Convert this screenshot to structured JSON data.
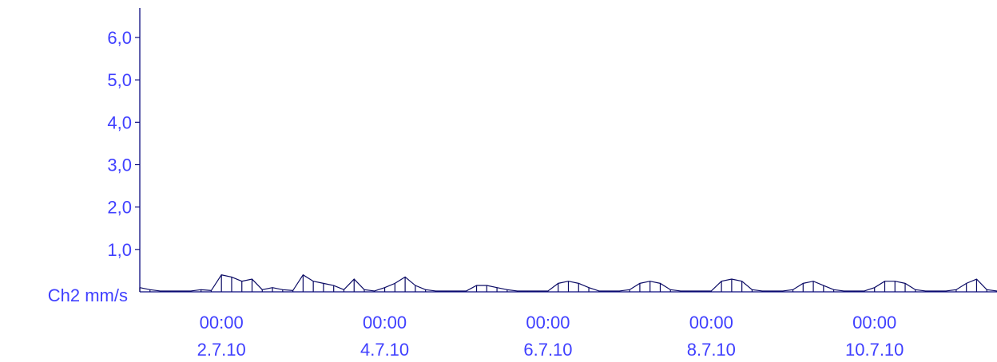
{
  "chart_data": {
    "type": "line",
    "ylabel": "Ch2 mm/s",
    "ylim": [
      0,
      6
    ],
    "y_ticks": [
      {
        "value": 6,
        "label": "6,0"
      },
      {
        "value": 5,
        "label": "5,0"
      },
      {
        "value": 4,
        "label": "4,0"
      },
      {
        "value": 3,
        "label": "3,0"
      },
      {
        "value": 2,
        "label": "2,0"
      },
      {
        "value": 1,
        "label": "1,0"
      }
    ],
    "x_ticks": [
      {
        "time": "00:00",
        "date": "2.7.10"
      },
      {
        "time": "00:00",
        "date": "4.7.10"
      },
      {
        "time": "00:00",
        "date": "6.7.10"
      },
      {
        "time": "00:00",
        "date": "8.7.10"
      },
      {
        "time": "00:00",
        "date": "10.7.10"
      }
    ],
    "xlim": [
      "2010-07-01 00:00",
      "2010-07-11 12:00"
    ],
    "grid": false,
    "series": [
      {
        "color": "#0a0a64",
        "x": [
          "2010-07-01 00:00",
          "2010-07-01 03:00",
          "2010-07-01 06:00",
          "2010-07-01 09:00",
          "2010-07-01 12:00",
          "2010-07-01 15:00",
          "2010-07-01 18:00",
          "2010-07-01 21:00",
          "2010-07-02 00:00",
          "2010-07-02 03:00",
          "2010-07-02 06:00",
          "2010-07-02 09:00",
          "2010-07-02 12:00",
          "2010-07-02 15:00",
          "2010-07-02 18:00",
          "2010-07-02 21:00",
          "2010-07-03 00:00",
          "2010-07-03 03:00",
          "2010-07-03 06:00",
          "2010-07-03 09:00",
          "2010-07-03 12:00",
          "2010-07-03 15:00",
          "2010-07-03 18:00",
          "2010-07-03 21:00",
          "2010-07-04 00:00",
          "2010-07-04 03:00",
          "2010-07-04 06:00",
          "2010-07-04 09:00",
          "2010-07-04 12:00",
          "2010-07-04 15:00",
          "2010-07-04 18:00",
          "2010-07-04 21:00",
          "2010-07-05 00:00",
          "2010-07-05 03:00",
          "2010-07-05 06:00",
          "2010-07-05 09:00",
          "2010-07-05 12:00",
          "2010-07-05 15:00",
          "2010-07-05 18:00",
          "2010-07-05 21:00",
          "2010-07-06 00:00",
          "2010-07-06 03:00",
          "2010-07-06 06:00",
          "2010-07-06 09:00",
          "2010-07-06 12:00",
          "2010-07-06 15:00",
          "2010-07-06 18:00",
          "2010-07-06 21:00",
          "2010-07-07 00:00",
          "2010-07-07 03:00",
          "2010-07-07 06:00",
          "2010-07-07 09:00",
          "2010-07-07 12:00",
          "2010-07-07 15:00",
          "2010-07-07 18:00",
          "2010-07-07 21:00",
          "2010-07-08 00:00",
          "2010-07-08 03:00",
          "2010-07-08 06:00",
          "2010-07-08 09:00",
          "2010-07-08 12:00",
          "2010-07-08 15:00",
          "2010-07-08 18:00",
          "2010-07-08 21:00",
          "2010-07-09 00:00",
          "2010-07-09 03:00",
          "2010-07-09 06:00",
          "2010-07-09 09:00",
          "2010-07-09 12:00",
          "2010-07-09 15:00",
          "2010-07-09 18:00",
          "2010-07-09 21:00",
          "2010-07-10 00:00",
          "2010-07-10 03:00",
          "2010-07-10 06:00",
          "2010-07-10 09:00",
          "2010-07-10 12:00",
          "2010-07-10 15:00",
          "2010-07-10 18:00",
          "2010-07-10 21:00",
          "2010-07-11 00:00",
          "2010-07-11 03:00",
          "2010-07-11 06:00",
          "2010-07-11 09:00",
          "2010-07-11 12:00"
        ],
        "y": [
          0.1,
          0.05,
          0.02,
          0.02,
          0.02,
          0.02,
          0.05,
          0.03,
          0.4,
          0.35,
          0.25,
          0.3,
          0.05,
          0.1,
          0.05,
          0.03,
          0.4,
          0.25,
          0.2,
          0.15,
          0.05,
          0.3,
          0.05,
          0.02,
          0.1,
          0.2,
          0.35,
          0.15,
          0.05,
          0.02,
          0.02,
          0.02,
          0.02,
          0.15,
          0.15,
          0.1,
          0.05,
          0.02,
          0.02,
          0.02,
          0.02,
          0.2,
          0.25,
          0.2,
          0.1,
          0.02,
          0.02,
          0.02,
          0.05,
          0.2,
          0.25,
          0.2,
          0.05,
          0.02,
          0.02,
          0.02,
          0.02,
          0.25,
          0.3,
          0.25,
          0.05,
          0.02,
          0.02,
          0.02,
          0.05,
          0.2,
          0.25,
          0.15,
          0.05,
          0.02,
          0.02,
          0.02,
          0.1,
          0.25,
          0.25,
          0.2,
          0.05,
          0.02,
          0.02,
          0.02,
          0.05,
          0.2,
          0.3,
          0.05,
          0.02
        ]
      }
    ]
  }
}
